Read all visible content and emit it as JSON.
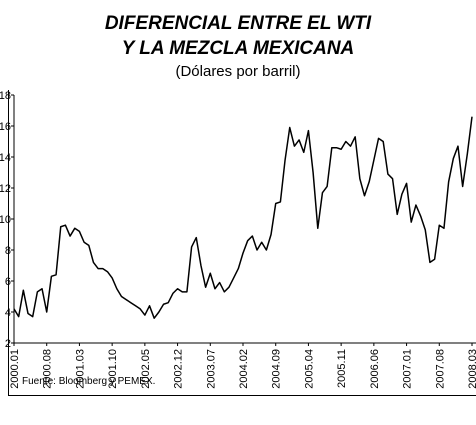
{
  "chart_data": {
    "type": "line",
    "title": [
      "DIFERENCIAL ENTRE EL WTI",
      "Y LA MEZCLA MEXICANA"
    ],
    "subtitle": "(Dólares por barril)",
    "source": "Fuente: Bloomberg y PEMEX.",
    "categories": [
      "2000.01",
      null,
      null,
      null,
      null,
      null,
      null,
      "2000.08",
      null,
      null,
      null,
      null,
      null,
      null,
      "2001.03",
      null,
      null,
      null,
      null,
      null,
      null,
      "2001.10",
      null,
      null,
      null,
      null,
      null,
      null,
      "2002.05",
      null,
      null,
      null,
      null,
      null,
      null,
      "2002.12",
      null,
      null,
      null,
      null,
      null,
      null,
      "2003.07",
      null,
      null,
      null,
      null,
      null,
      null,
      "2004.02",
      null,
      null,
      null,
      null,
      null,
      null,
      "2004.09",
      null,
      null,
      null,
      null,
      null,
      null,
      "2005.04",
      null,
      null,
      null,
      null,
      null,
      null,
      "2005.11",
      null,
      null,
      null,
      null,
      null,
      null,
      "2006.06",
      null,
      null,
      null,
      null,
      null,
      null,
      "2007.01",
      null,
      null,
      null,
      null,
      null,
      null,
      "2007.08",
      null,
      null,
      null,
      null,
      null,
      null,
      "2008.03"
    ],
    "series": [
      {
        "color": "#000000",
        "values": [
          4.2,
          3.7,
          5.4,
          3.9,
          3.7,
          5.3,
          5.5,
          4.0,
          6.3,
          6.4,
          9.5,
          9.6,
          8.9,
          9.4,
          9.2,
          8.5,
          8.3,
          7.2,
          6.8,
          6.8,
          6.6,
          6.2,
          5.5,
          5.0,
          4.8,
          4.6,
          4.4,
          4.2,
          3.8,
          4.4,
          3.6,
          4.0,
          4.5,
          4.6,
          5.2,
          5.5,
          5.3,
          5.3,
          8.2,
          8.8,
          7.0,
          5.6,
          6.5,
          5.5,
          5.9,
          5.3,
          5.6,
          6.2,
          6.8,
          7.8,
          8.6,
          8.9,
          8.0,
          8.5,
          8.0,
          9.0,
          11.0,
          11.1,
          13.8,
          15.9,
          14.7,
          15.1,
          14.3,
          15.7,
          13.0,
          9.4,
          11.7,
          12.1,
          14.6,
          14.6,
          14.5,
          15.0,
          14.7,
          15.3,
          12.6,
          11.5,
          12.4,
          13.8,
          15.2,
          15.0,
          12.9,
          12.6,
          10.3,
          11.6,
          12.3,
          9.8,
          10.9,
          10.2,
          9.3,
          7.2,
          7.4,
          9.6,
          9.4,
          12.4,
          13.9,
          14.7,
          12.1,
          14.2,
          16.6
        ]
      }
    ],
    "ylim": [
      2,
      18
    ],
    "yticks": [
      2,
      4,
      6,
      8,
      10,
      12,
      14,
      16,
      18
    ]
  }
}
